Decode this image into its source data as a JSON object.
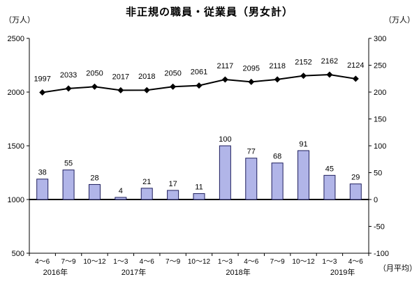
{
  "chart_data": {
    "type": "combo-bar-line",
    "title": "非正規の職員・従業員（男女計）",
    "categories": [
      "4～6",
      "7～9",
      "10～12",
      "1～3",
      "4～6",
      "7～9",
      "10～12",
      "1～3",
      "4～6",
      "7～9",
      "10～12",
      "1～3",
      "4～6"
    ],
    "year_groups": [
      {
        "label": "2016年",
        "start": 0,
        "count": 3
      },
      {
        "label": "2017年",
        "start": 3,
        "count": 4
      },
      {
        "label": "2018年",
        "start": 7,
        "count": 4
      },
      {
        "label": "2019年",
        "start": 11,
        "count": 2
      }
    ],
    "series": [
      {
        "name": "level-line",
        "type": "line",
        "axis": "left",
        "values": [
          1997,
          2033,
          2050,
          2017,
          2018,
          2050,
          2061,
          2117,
          2095,
          2118,
          2152,
          2162,
          2124
        ]
      },
      {
        "name": "change-bars",
        "type": "bar",
        "axis": "right",
        "values": [
          38,
          55,
          28,
          4,
          21,
          17,
          11,
          100,
          77,
          68,
          91,
          45,
          29
        ]
      }
    ],
    "left_axis": {
      "unit": "（万人）",
      "min": 500,
      "max": 2500,
      "ticks": [
        500,
        1000,
        1500,
        2000,
        2500
      ]
    },
    "right_axis": {
      "unit": "（万人）",
      "min": -100,
      "max": 300,
      "ticks": [
        -100,
        -50,
        0,
        50,
        100,
        150,
        200,
        250,
        300
      ],
      "footnote": "（月平均）"
    },
    "legend": "off",
    "grid": "off",
    "colors": {
      "bar_fill": "#b1b5e8",
      "bar_stroke": "#1f1f5e",
      "line": "#000000",
      "axis": "#000000"
    }
  }
}
